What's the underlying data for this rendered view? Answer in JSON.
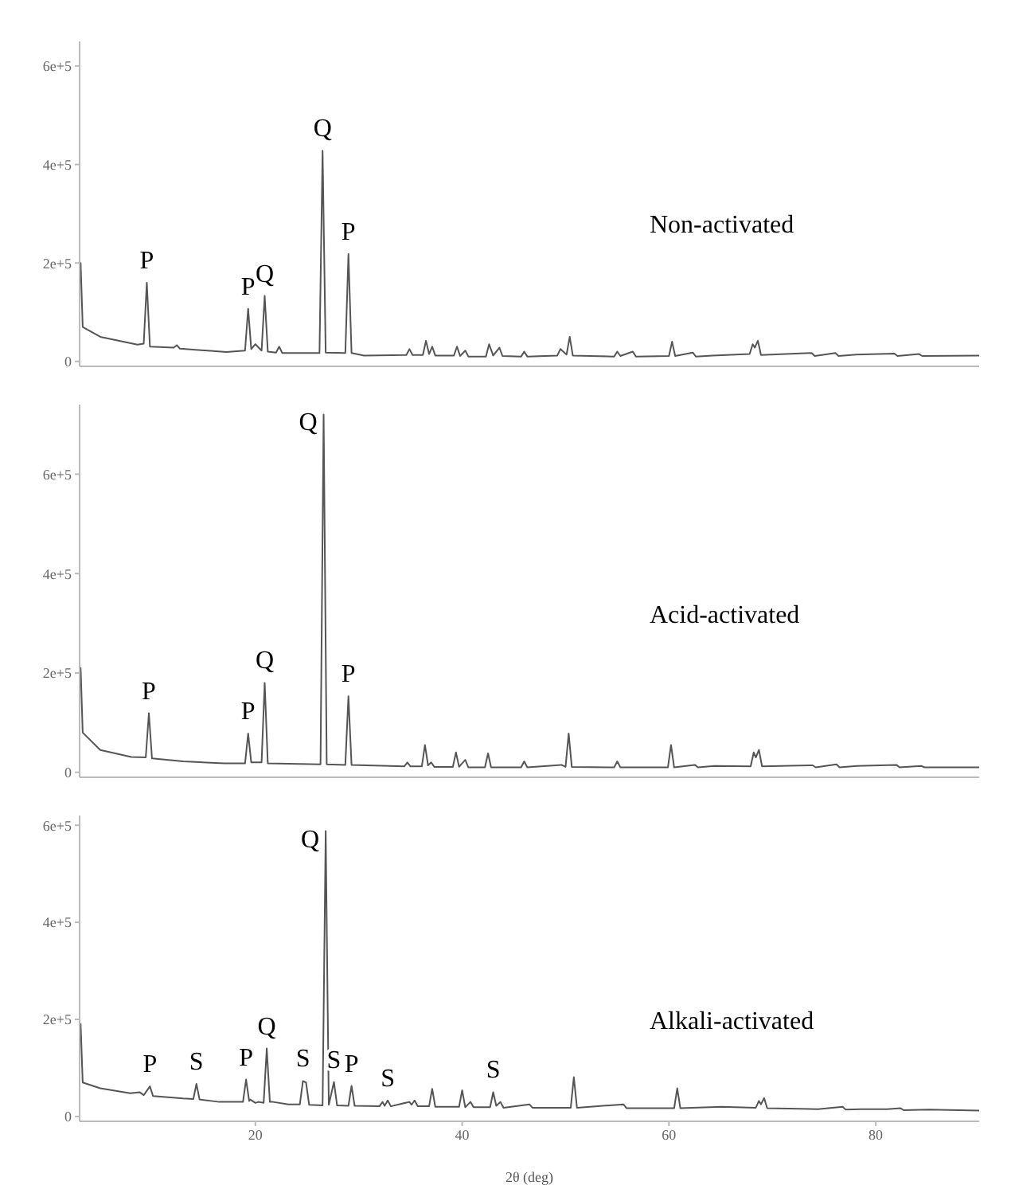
{
  "chart_data": [
    {
      "type": "line",
      "xlim": [
        3,
        90
      ],
      "xticks": [
        20,
        40,
        60,
        80
      ],
      "tick_labels": "y",
      "ylim": [
        -10000,
        650000
      ],
      "yticks": [
        {
          "value": 0,
          "label": "0"
        },
        {
          "value": 200000,
          "label": "2e+5"
        },
        {
          "value": 400000,
          "label": "4e+5"
        },
        {
          "value": 600000,
          "label": "6e+5"
        }
      ],
      "x": [
        3.1,
        3.3,
        5,
        8.6,
        9.2,
        9.5,
        9.8,
        12.1,
        12.4,
        12.7,
        17.2,
        19.0,
        19.3,
        19.6,
        20.0,
        20.6,
        20.9,
        21.2,
        22.0,
        22.3,
        22.6,
        26.2,
        26.5,
        26.8,
        28.7,
        29.0,
        29.3,
        30.5,
        34.6,
        34.9,
        35.2,
        36.2,
        36.5,
        36.8,
        37.1,
        37.4,
        39.2,
        39.5,
        39.8,
        40.3,
        40.6,
        42.3,
        42.6,
        43.0,
        43.6,
        43.9,
        45.7,
        46.0,
        46.3,
        49.2,
        49.5,
        50.1,
        50.4,
        50.7,
        54.7,
        55.0,
        55.3,
        56.5,
        56.8,
        60.0,
        60.3,
        60.6,
        62.3,
        62.6,
        64.2,
        67.8,
        68.1,
        68.3,
        68.6,
        68.9,
        73.8,
        74.1,
        76.1,
        76.4,
        78.1,
        80.3,
        81.8,
        82.1,
        84.2,
        84.5,
        90
      ],
      "series": [
        {
          "name": "Non-activated",
          "color": "#555555",
          "values": [
            200000,
            70000,
            50000,
            34000,
            36000,
            160000,
            30000,
            28000,
            33000,
            26000,
            19000,
            22000,
            107000,
            25000,
            35000,
            22000,
            133000,
            20000,
            18000,
            30000,
            17000,
            17000,
            428000,
            18000,
            17000,
            218000,
            17000,
            12000,
            13000,
            25000,
            13000,
            13000,
            42000,
            15000,
            30000,
            12000,
            12000,
            30000,
            11000,
            22000,
            10000,
            10000,
            35000,
            12000,
            28000,
            11000,
            10000,
            20000,
            10000,
            12000,
            25000,
            14000,
            50000,
            12000,
            10000,
            20000,
            11000,
            20000,
            10000,
            11000,
            40000,
            11000,
            18000,
            10000,
            12000,
            15000,
            35000,
            28000,
            42000,
            13000,
            17000,
            11000,
            17000,
            11000,
            14000,
            15000,
            16000,
            11000,
            15000,
            11000,
            12000
          ]
        }
      ],
      "annotations": [
        {
          "text": "P",
          "x": 9.5,
          "y": 160000
        },
        {
          "text": "P",
          "x": 19.3,
          "y": 107000
        },
        {
          "text": "Q",
          "x": 20.9,
          "y": 133000
        },
        {
          "text": "Q",
          "x": 26.5,
          "y": 428000
        },
        {
          "text": "P",
          "x": 29.0,
          "y": 218000
        }
      ]
    },
    {
      "type": "line",
      "xlim": [
        3,
        90
      ],
      "xticks": [
        20,
        40,
        60,
        80
      ],
      "tick_labels": "y",
      "ylim": [
        -10000,
        740000
      ],
      "yticks": [
        {
          "value": 0,
          "label": "0"
        },
        {
          "value": 200000,
          "label": "2e+5"
        },
        {
          "value": 400000,
          "label": "4e+5"
        },
        {
          "value": 600000,
          "label": "6e+5"
        }
      ],
      "x": [
        3.1,
        3.3,
        5,
        8,
        9.4,
        9.7,
        10.0,
        13,
        17,
        19.0,
        19.3,
        19.6,
        20.6,
        20.9,
        21.2,
        26.3,
        26.6,
        26.9,
        28.7,
        29.0,
        29.3,
        34.4,
        34.7,
        35.0,
        36.1,
        36.4,
        36.7,
        37.0,
        37.3,
        39.1,
        39.4,
        39.7,
        40.3,
        40.6,
        42.2,
        42.5,
        42.8,
        45.7,
        46.0,
        46.3,
        49.6,
        50.0,
        50.3,
        50.6,
        54.7,
        55.0,
        55.3,
        59.9,
        60.2,
        60.5,
        62.5,
        62.8,
        64.4,
        67.9,
        68.2,
        68.4,
        68.7,
        69.0,
        73.9,
        74.2,
        76.2,
        76.5,
        78.2,
        80.4,
        82.0,
        82.3,
        84.4,
        84.7,
        90
      ],
      "series": [
        {
          "name": "Acid-activated",
          "color": "#555555",
          "values": [
            210000,
            80000,
            45000,
            31000,
            30000,
            119000,
            28000,
            22000,
            18000,
            18000,
            78000,
            20000,
            20000,
            180000,
            18000,
            16000,
            720000,
            16000,
            15000,
            153000,
            15000,
            12000,
            20000,
            12000,
            12000,
            55000,
            14000,
            20000,
            11000,
            11000,
            40000,
            11000,
            25000,
            10000,
            10000,
            38000,
            10000,
            10000,
            22000,
            10000,
            15000,
            11000,
            78000,
            11000,
            10000,
            22000,
            10000,
            10000,
            55000,
            10000,
            15000,
            10000,
            13000,
            12000,
            40000,
            30000,
            45000,
            12000,
            14000,
            10000,
            16000,
            10000,
            13000,
            14000,
            15000,
            10000,
            13000,
            10000,
            10000
          ]
        }
      ],
      "annotations": [
        {
          "text": "P",
          "x": 9.7,
          "y": 119000
        },
        {
          "text": "P",
          "x": 19.3,
          "y": 78000
        },
        {
          "text": "Q",
          "x": 20.9,
          "y": 180000
        },
        {
          "text": "Q",
          "x": 26.6,
          "y": 720000
        },
        {
          "text": "P",
          "x": 29.0,
          "y": 153000
        }
      ]
    },
    {
      "type": "line",
      "xlim": [
        3,
        90
      ],
      "xticks": [
        20,
        40,
        60,
        80
      ],
      "xlabel": "2θ (deg)",
      "ylim": [
        -10000,
        620000
      ],
      "yticks": [
        {
          "value": 0,
          "label": "0"
        },
        {
          "value": 200000,
          "label": "2e+5"
        },
        {
          "value": 400000,
          "label": "4e+5"
        },
        {
          "value": 600000,
          "label": "6e+5"
        }
      ],
      "x": [
        3.1,
        3.3,
        5,
        7.9,
        8.8,
        9.2,
        9.8,
        10.1,
        13,
        14.0,
        14.3,
        14.6,
        16.5,
        18.8,
        19.1,
        19.4,
        19.5,
        20.0,
        20.3,
        20.8,
        21.1,
        21.4,
        21.7,
        23.2,
        24.3,
        24.6,
        24.9,
        25.2,
        26.5,
        26.8,
        27.1,
        27.6,
        27.9,
        29.0,
        29.3,
        29.6,
        32.0,
        32.3,
        32.5,
        32.8,
        33.1,
        34.9,
        35.1,
        35.4,
        35.7,
        36.8,
        37.1,
        37.4,
        39.7,
        40.0,
        40.3,
        40.8,
        41.1,
        42.7,
        43.0,
        43.3,
        43.7,
        44.0,
        46.5,
        46.8,
        50.5,
        50.8,
        51.1,
        55.6,
        55.9,
        60.5,
        60.8,
        61.1,
        65.1,
        68.4,
        68.7,
        68.9,
        69.2,
        69.5,
        74.4,
        76.8,
        77.1,
        78.6,
        81.1,
        82.4,
        82.7,
        85.1,
        90
      ],
      "series": [
        {
          "name": "Alkali-activated",
          "color": "#555555",
          "values": [
            190000,
            70000,
            58000,
            48000,
            50000,
            44000,
            62000,
            42000,
            37000,
            36000,
            67000,
            35000,
            30000,
            30000,
            76000,
            32000,
            35000,
            28000,
            30000,
            28000,
            140000,
            30000,
            30000,
            25000,
            25000,
            73000,
            70000,
            24000,
            23000,
            588000,
            24000,
            71000,
            23000,
            22000,
            63000,
            22000,
            21000,
            30000,
            22000,
            33000,
            21000,
            30000,
            24000,
            33000,
            21000,
            21000,
            57000,
            20000,
            20000,
            54000,
            19000,
            30000,
            19000,
            19000,
            50000,
            22000,
            30000,
            18000,
            25000,
            18000,
            18000,
            81000,
            18000,
            25000,
            17000,
            17000,
            58000,
            17000,
            20000,
            18000,
            32000,
            25000,
            38000,
            17000,
            15000,
            20000,
            14000,
            15000,
            15000,
            17000,
            13000,
            14000,
            12000
          ]
        }
      ],
      "annotations": [
        {
          "text": "P",
          "x": 9.8,
          "y": 62000
        },
        {
          "text": "S",
          "x": 14.3,
          "y": 67000
        },
        {
          "text": "P",
          "x": 19.1,
          "y": 76000
        },
        {
          "text": "Q",
          "x": 21.1,
          "y": 140000
        },
        {
          "text": "S",
          "x": 24.6,
          "y": 73000
        },
        {
          "text": "Q",
          "x": 26.8,
          "y": 588000
        },
        {
          "text": "S",
          "x": 27.6,
          "y": 71000
        },
        {
          "text": "P",
          "x": 29.3,
          "y": 63000
        },
        {
          "text": "S",
          "x": 32.8,
          "y": 33000
        },
        {
          "text": "S",
          "x": 43.0,
          "y": 50000
        }
      ]
    }
  ]
}
